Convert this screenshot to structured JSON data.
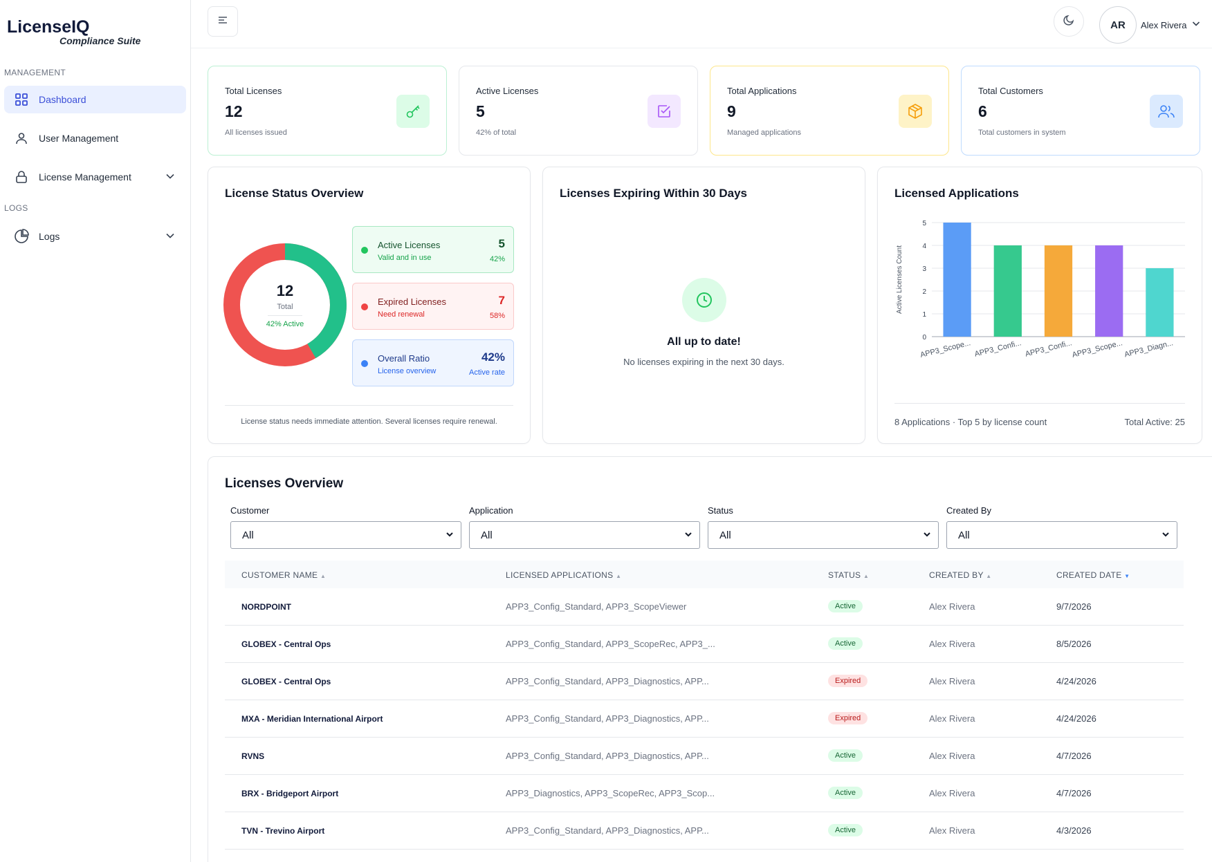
{
  "brand": {
    "title": "LicenseIQ",
    "subtitle": "Compliance Suite"
  },
  "sidebar": {
    "section_management": "MANAGEMENT",
    "section_logs": "LOGS",
    "items": [
      {
        "label": "Dashboard",
        "icon": "grid-icon",
        "active": true
      },
      {
        "label": "User Management",
        "icon": "user-icon"
      },
      {
        "label": "License Management",
        "icon": "lock-icon"
      },
      {
        "label": "Logs",
        "icon": "pie-icon"
      }
    ]
  },
  "topbar": {
    "avatar_initials": "AR",
    "user_name": "Alex Rivera"
  },
  "stats": [
    {
      "label": "Total Licenses",
      "value": "12",
      "sub": "All licenses issued",
      "icon": "key-icon",
      "border": "#bbf0d3",
      "icon_bg": "#dcfce7",
      "icon_color": "#22c55e"
    },
    {
      "label": "Active Licenses",
      "value": "5",
      "sub": "42% of total",
      "icon": "check-square-icon",
      "border": "#e5e7eb",
      "icon_bg": "#f3e8ff",
      "icon_color": "#a855f7"
    },
    {
      "label": "Total Applications",
      "value": "9",
      "sub": "Managed applications",
      "icon": "box-icon",
      "border": "#fde68a",
      "icon_bg": "#fef3c7",
      "icon_color": "#f59e0b"
    },
    {
      "label": "Total Customers",
      "value": "6",
      "sub": "Total customers in system",
      "icon": "users-icon",
      "border": "#bfdbfe",
      "icon_bg": "#dbeafe",
      "icon_color": "#3b82f6"
    }
  ],
  "status_overview": {
    "title": "License Status Overview",
    "total": "12",
    "total_label": "Total",
    "active_pct_label": "42% Active",
    "active_fraction": 0.4167,
    "active_color": "#22c08a",
    "expired_color": "#ef5350",
    "cards": [
      {
        "title": "Active Licenses",
        "sub": "Valid and in use",
        "value": "5",
        "pct": "42%"
      },
      {
        "title": "Expired Licenses",
        "sub": "Need renewal",
        "value": "7",
        "pct": "58%"
      },
      {
        "title": "Overall Ratio",
        "sub": "License overview",
        "value": "42%",
        "pct": "Active rate"
      }
    ],
    "note": "License status needs immediate attention. Several licenses require renewal."
  },
  "expiring": {
    "title": "Licenses Expiring Within 30 Days",
    "heading": "All up to date!",
    "sub": "No licenses expiring in the next 30 days."
  },
  "applications": {
    "title": "Licensed Applications",
    "footer_left": "8 Applications  ·  Top 5 by license count",
    "footer_right": "Total Active: 25"
  },
  "chart_data": {
    "type": "bar",
    "categories": [
      "APP3_Scope...",
      "APP3_Confi...",
      "APP3_Confi...",
      "APP3_Scope...",
      "APP3_Diagn..."
    ],
    "values": [
      5,
      4,
      4,
      4,
      3
    ],
    "colors": [
      "#5b9cf6",
      "#36c98e",
      "#f5a93a",
      "#9b6cf2",
      "#4fd6cf"
    ],
    "ylabel": "Active Licenses Count",
    "ylim": [
      0,
      5
    ],
    "yticks": [
      "0",
      "1",
      "2",
      "3",
      "4",
      "5"
    ],
    "grid": true
  },
  "licenses": {
    "title": "Licenses Overview",
    "filters": [
      {
        "label": "Customer",
        "value": "All"
      },
      {
        "label": "Application",
        "value": "All"
      },
      {
        "label": "Status",
        "value": "All"
      },
      {
        "label": "Created By",
        "value": "All"
      }
    ],
    "columns": [
      "CUSTOMER NAME",
      "LICENSED APPLICATIONS",
      "STATUS",
      "CREATED BY",
      "CREATED DATE"
    ],
    "rows": [
      {
        "name": "NORDPOINT",
        "apps": "APP3_Config_Standard, APP3_ScopeViewer",
        "status": "Active",
        "by": "Alex Rivera",
        "date": "9/7/2026"
      },
      {
        "name": "GLOBEX - Central Ops",
        "apps": "APP3_Config_Standard, APP3_ScopeRec, APP3_...",
        "status": "Active",
        "by": "Alex Rivera",
        "date": "8/5/2026"
      },
      {
        "name": "GLOBEX - Central Ops",
        "apps": "APP3_Config_Standard, APP3_Diagnostics, APP...",
        "status": "Expired",
        "by": "Alex Rivera",
        "date": "4/24/2026"
      },
      {
        "name": "MXA - Meridian International Airport",
        "apps": "APP3_Config_Standard, APP3_Diagnostics, APP...",
        "status": "Expired",
        "by": "Alex Rivera",
        "date": "4/24/2026"
      },
      {
        "name": "RVNS",
        "apps": "APP3_Config_Standard, APP3_Diagnostics, APP...",
        "status": "Active",
        "by": "Alex Rivera",
        "date": "4/7/2026"
      },
      {
        "name": "BRX - Bridgeport Airport",
        "apps": "APP3_Diagnostics, APP3_ScopeRec, APP3_Scop...",
        "status": "Active",
        "by": "Alex Rivera",
        "date": "4/7/2026"
      },
      {
        "name": "TVN - Trevino Airport",
        "apps": "APP3_Config_Standard, APP3_Diagnostics, APP...",
        "status": "Active",
        "by": "Alex Rivera",
        "date": "4/3/2026"
      }
    ]
  }
}
